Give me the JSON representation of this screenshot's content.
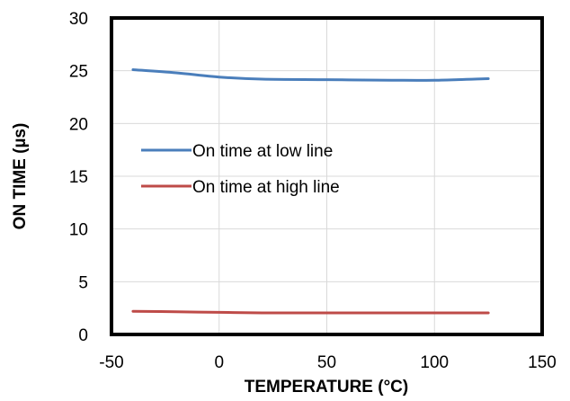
{
  "chart_data": {
    "type": "line",
    "xlabel": "TEMPERATURE  (°C)",
    "ylabel": "ON TIME (µs)",
    "xlim": [
      -50,
      150
    ],
    "ylim": [
      0,
      30
    ],
    "xticks": [
      -50,
      0,
      50,
      100,
      150
    ],
    "yticks": [
      0,
      5,
      10,
      15,
      20,
      25,
      30
    ],
    "grid": true,
    "legend_position": "center-left",
    "series": [
      {
        "name": "On time at low line",
        "color": "#4A7EBB",
        "x": [
          -40,
          -20,
          0,
          20,
          50,
          80,
          100,
          125
        ],
        "y": [
          25.1,
          24.8,
          24.4,
          24.2,
          24.15,
          24.1,
          24.1,
          24.25
        ]
      },
      {
        "name": "On time at high line",
        "color": "#BE4B48",
        "x": [
          -40,
          -20,
          0,
          20,
          50,
          80,
          100,
          125
        ],
        "y": [
          2.2,
          2.15,
          2.1,
          2.05,
          2.05,
          2.05,
          2.05,
          2.05
        ]
      }
    ]
  }
}
